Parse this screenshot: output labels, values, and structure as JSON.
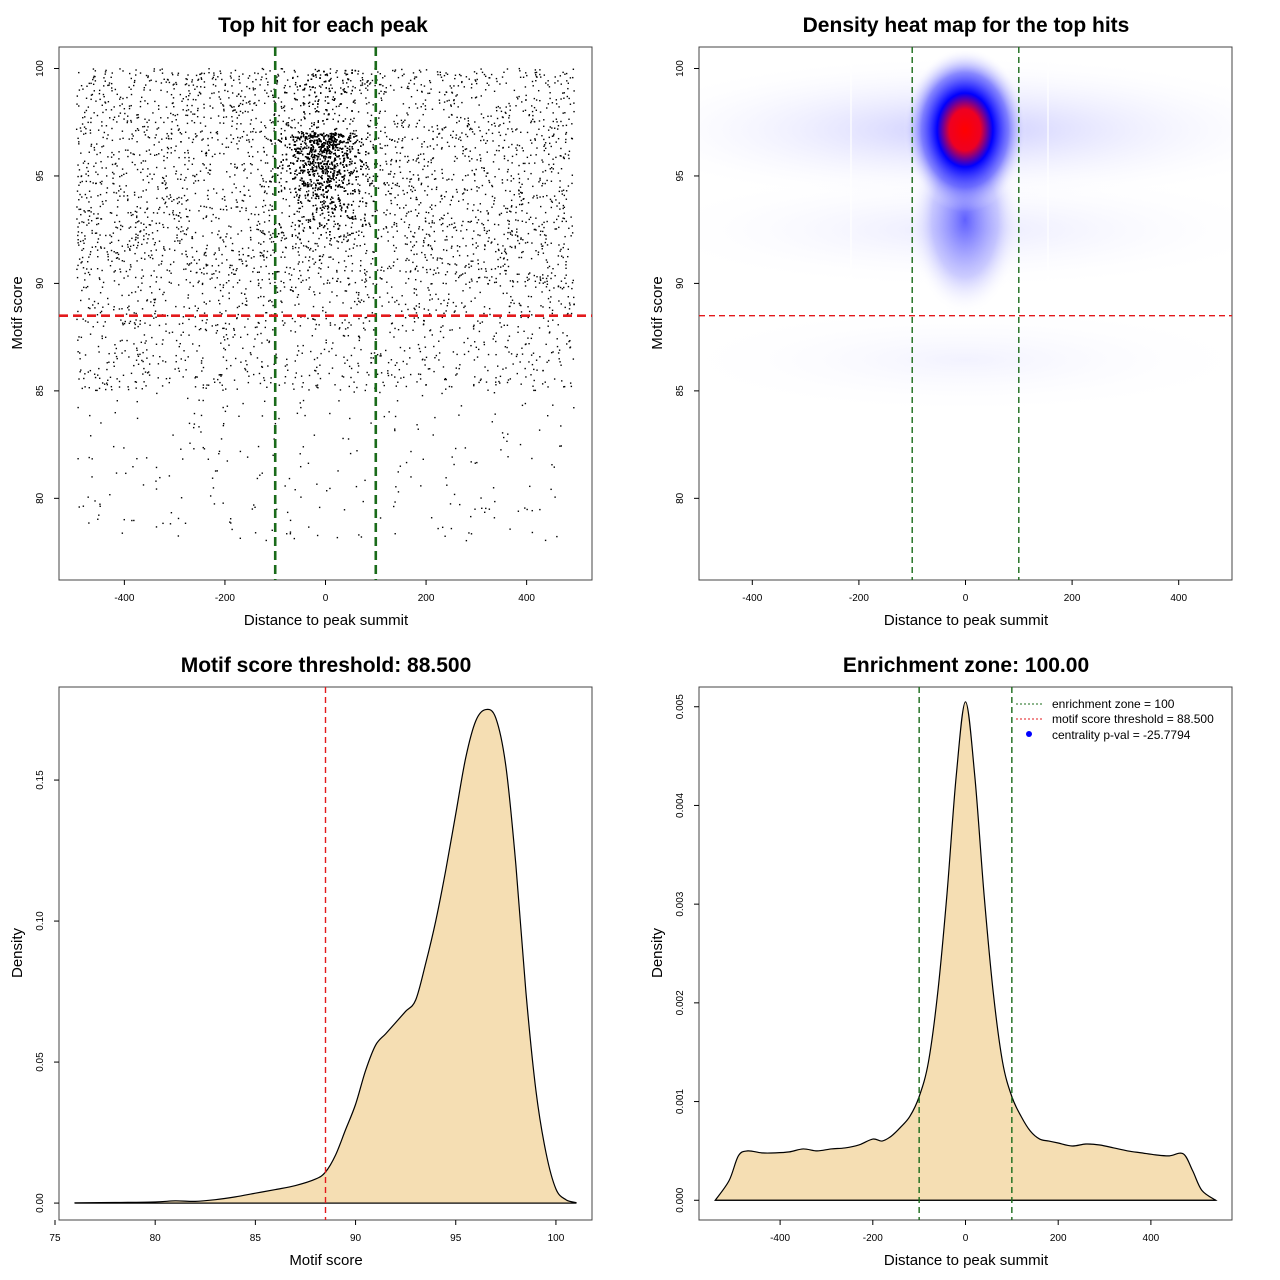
{
  "chart_data": [
    {
      "id": "scatter",
      "type": "scatter",
      "title": "Top hit for each peak",
      "xlabel": "Distance to peak summit",
      "ylabel": "Motif score",
      "xlim": [
        -530,
        530
      ],
      "ylim": [
        76.2,
        101
      ],
      "xticks": [
        -400,
        -200,
        0,
        200,
        400
      ],
      "yticks": [
        80,
        85,
        90,
        95,
        100
      ],
      "hlines": [
        {
          "y": 88.5,
          "color": "#e31a1c",
          "style": "dashed"
        }
      ],
      "vlines": [
        {
          "x": -100,
          "color": "#1a6b1a",
          "style": "dashed"
        },
        {
          "x": 100,
          "color": "#1a6b1a",
          "style": "dashed"
        }
      ],
      "points_description_values": {
        "x_range": [
          -500,
          500
        ],
        "center_density_peak_x": 0,
        "center_density_peak_y": 97,
        "y_range": [
          77,
          100
        ]
      }
    },
    {
      "id": "heatmap",
      "type": "heatmap",
      "title": "Density heat map for the top hits",
      "xlabel": "Distance to peak summit",
      "ylabel": "Motif score",
      "xlim": [
        -500,
        500
      ],
      "ylim": [
        76.2,
        101
      ],
      "xticks": [
        -400,
        -200,
        0,
        200,
        400
      ],
      "yticks": [
        80,
        85,
        90,
        95,
        100
      ],
      "hotspot": {
        "x": 0,
        "y": 97
      },
      "colors": [
        "#ffffff",
        "#0000ff",
        "#ff0000"
      ],
      "hlines": [
        {
          "y": 88.5,
          "color": "#e31a1c",
          "style": "dashed"
        }
      ],
      "vlines": [
        {
          "x": -100,
          "color": "#1a6b1a",
          "style": "dashed"
        },
        {
          "x": 100,
          "color": "#1a6b1a",
          "style": "dashed"
        }
      ]
    },
    {
      "id": "density-score",
      "type": "area",
      "title": "Motif score threshold: 88.500",
      "xlabel": "Motif score",
      "ylabel": "Density",
      "xlim": [
        75.2,
        101.8
      ],
      "ylim": [
        -0.006,
        0.183
      ],
      "xticks": [
        75,
        80,
        85,
        90,
        95,
        100
      ],
      "yticks": [
        0.0,
        0.05,
        0.1,
        0.15
      ],
      "ytick_labels": [
        "0.00",
        "0.05",
        "0.10",
        "0.15"
      ],
      "fill": "#f5deb3",
      "x": [
        76,
        78,
        80,
        81,
        82,
        83,
        84,
        85,
        86,
        87,
        88,
        88.5,
        89,
        89.5,
        90,
        90.5,
        91,
        91.5,
        92,
        92.5,
        93,
        93.5,
        94,
        94.5,
        95,
        95.5,
        96,
        96.5,
        97,
        97.5,
        98,
        98.5,
        99,
        99.5,
        100,
        100.5,
        101
      ],
      "y": [
        0.0001,
        0.0002,
        0.0004,
        0.0008,
        0.0006,
        0.0012,
        0.0022,
        0.0035,
        0.0048,
        0.0062,
        0.0085,
        0.011,
        0.017,
        0.026,
        0.035,
        0.047,
        0.056,
        0.06,
        0.064,
        0.068,
        0.072,
        0.085,
        0.1,
        0.118,
        0.138,
        0.158,
        0.171,
        0.175,
        0.172,
        0.155,
        0.12,
        0.075,
        0.04,
        0.018,
        0.005,
        0.0012,
        0.0002
      ],
      "vlines": [
        {
          "x": 88.5,
          "color": "#e31a1c",
          "style": "dashed"
        }
      ]
    },
    {
      "id": "density-distance",
      "type": "area",
      "title": "Enrichment zone: 100.00",
      "xlabel": "Distance to peak summit",
      "ylabel": "Density",
      "xlim": [
        -575,
        575
      ],
      "ylim": [
        -0.0002,
        0.0052
      ],
      "xticks": [
        -400,
        -200,
        0,
        200,
        400
      ],
      "yticks": [
        0.0,
        0.001,
        0.002,
        0.003,
        0.004,
        0.005
      ],
      "ytick_labels": [
        "0.000",
        "0.001",
        "0.002",
        "0.003",
        "0.004",
        "0.005"
      ],
      "fill": "#f5deb3",
      "x": [
        -540,
        -510,
        -490,
        -470,
        -440,
        -410,
        -380,
        -350,
        -320,
        -290,
        -260,
        -230,
        -200,
        -180,
        -160,
        -140,
        -120,
        -100,
        -80,
        -60,
        -40,
        -20,
        0,
        20,
        40,
        60,
        80,
        100,
        120,
        140,
        160,
        180,
        200,
        230,
        260,
        290,
        320,
        350,
        380,
        410,
        440,
        470,
        490,
        510,
        540
      ],
      "y": [
        0.0,
        0.0002,
        0.00045,
        0.0005,
        0.00048,
        0.00048,
        0.00049,
        0.00052,
        0.0005,
        0.00052,
        0.00053,
        0.00056,
        0.00062,
        0.0006,
        0.00065,
        0.00074,
        0.00085,
        0.00105,
        0.0014,
        0.0021,
        0.0031,
        0.0043,
        0.00505,
        0.0043,
        0.0031,
        0.0021,
        0.0014,
        0.00105,
        0.00085,
        0.0007,
        0.00062,
        0.0006,
        0.00058,
        0.00055,
        0.00057,
        0.00056,
        0.00053,
        0.0005,
        0.00048,
        0.00046,
        0.00045,
        0.00047,
        0.0003,
        0.0001,
        0.0
      ],
      "vlines": [
        {
          "x": -100,
          "color": "#1a6b1a",
          "style": "dashed"
        },
        {
          "x": 100,
          "color": "#1a6b1a",
          "style": "dashed"
        }
      ],
      "legend": {
        "position": "top-right",
        "entries": [
          {
            "label": "enrichment zone = 100",
            "color": "#1a6b1a",
            "kind": "dotted-line"
          },
          {
            "label": "motif score threshold = 88.500",
            "color": "#e31a1c",
            "kind": "dotted-line"
          },
          {
            "label": "centrality p-val = -25.7794",
            "color": "#0000ff",
            "kind": "dot"
          }
        ]
      }
    }
  ]
}
